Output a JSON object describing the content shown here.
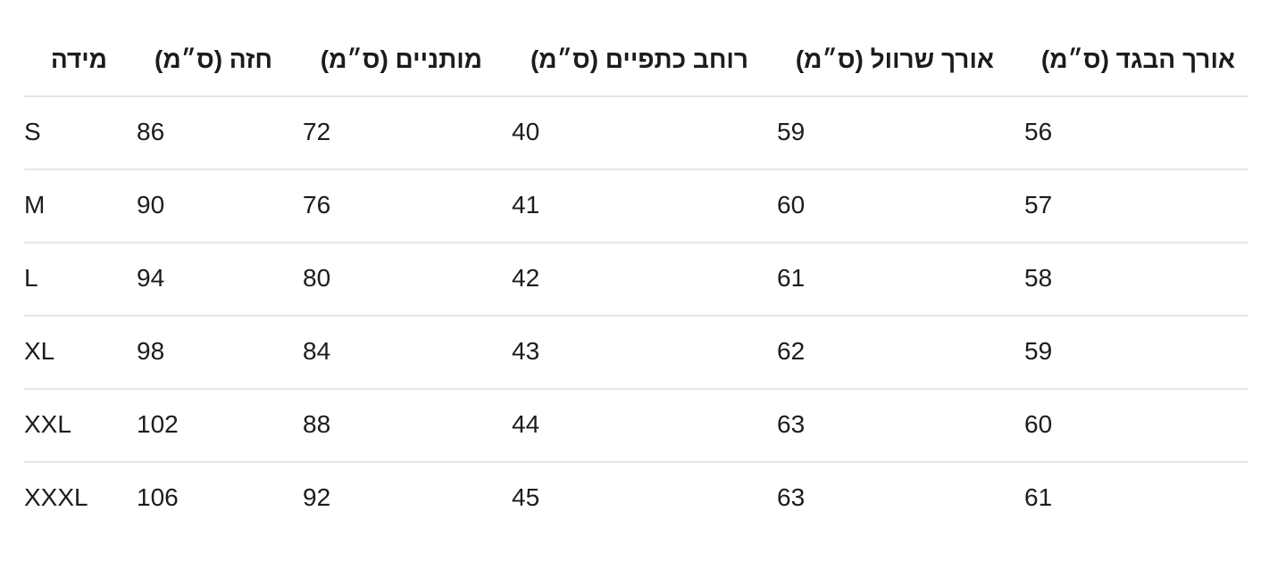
{
  "table": {
    "header": [
      "מידה",
      "חזה (ס״מ)",
      "מותניים (ס״מ)",
      "רוחב כתפיים (ס״מ)",
      "אורך שרוול (ס״מ)",
      "אורך הבגד (ס״מ)"
    ],
    "rows": [
      [
        "S",
        86,
        72,
        40,
        59,
        56
      ],
      [
        "M",
        90,
        76,
        41,
        60,
        57
      ],
      [
        "L",
        94,
        80,
        42,
        61,
        58
      ],
      [
        "XL",
        98,
        84,
        43,
        62,
        59
      ],
      [
        "XXL",
        102,
        88,
        44,
        63,
        60
      ],
      [
        "XXXL",
        106,
        92,
        45,
        63,
        61
      ]
    ]
  }
}
